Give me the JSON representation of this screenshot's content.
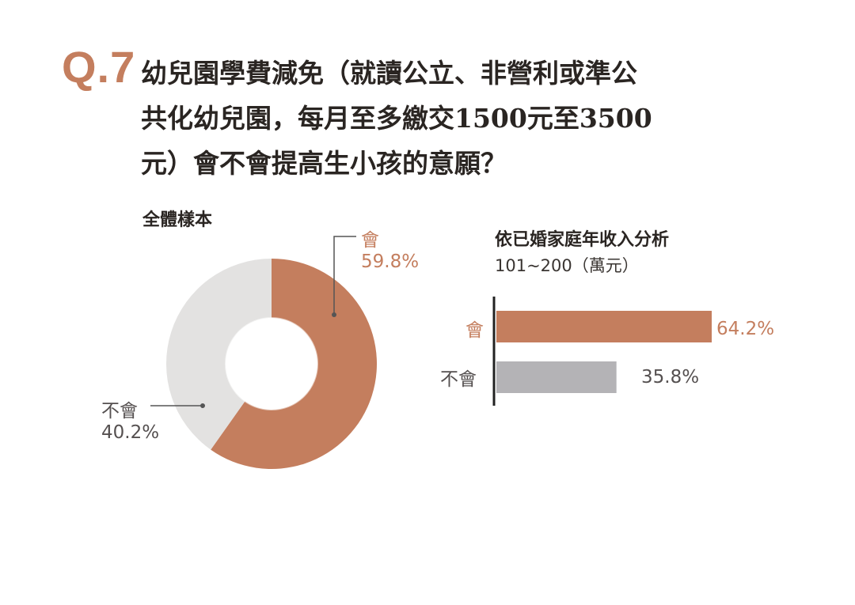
{
  "question": {
    "number": "Q.7",
    "lines": [
      "幼兒園學費減免（就讀公立、非營利或準公",
      "共化幼兒園，每月至多繳交1500元至3500",
      "元）會不會提高生小孩的意願？"
    ]
  },
  "colors": {
    "orange": "#c47e5e",
    "light_gray": "#e3e2e1",
    "bar_gray": "#b4b3b6"
  },
  "chart_data": [
    {
      "type": "pie",
      "title": "全體樣本",
      "series": [
        {
          "label": "會",
          "value": 59.8,
          "display": "59.8%",
          "color": "#c47e5e"
        },
        {
          "label": "不會",
          "value": 40.2,
          "display": "40.2%",
          "color": "#e3e2e1"
        }
      ]
    },
    {
      "type": "bar",
      "orientation": "horizontal",
      "title": "依已婚家庭年收入分析",
      "subtitle": "101~200（萬元）",
      "categories": [
        "會",
        "不會"
      ],
      "values": [
        64.2,
        35.8
      ],
      "value_labels": [
        "64.2%",
        "35.8%"
      ],
      "colors": [
        "#c47e5e",
        "#b4b3b6"
      ]
    }
  ]
}
